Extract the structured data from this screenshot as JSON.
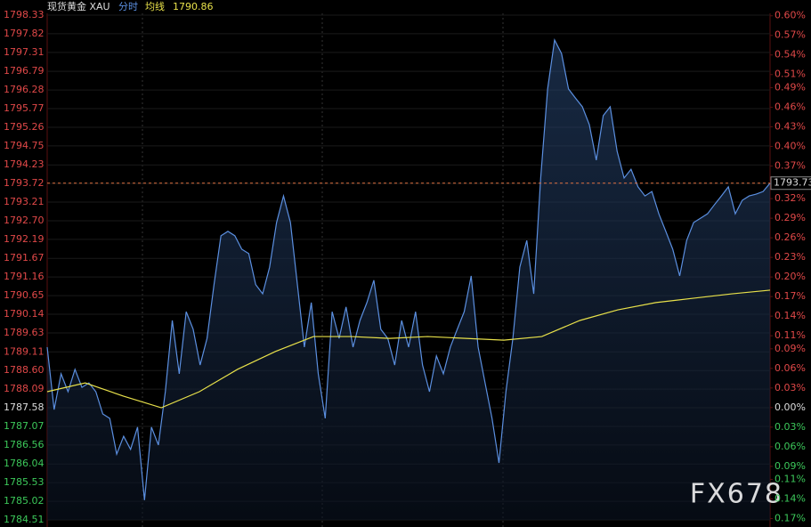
{
  "chart_data": {
    "type": "line",
    "title": "现货黄金 XAU",
    "mode_label": "分时",
    "avg_label": "均线",
    "avg_value": "1790.86",
    "last_price": 1793.73,
    "watermark": "FX678",
    "ylim": [
      1784.51,
      1798.33
    ],
    "yticks": [
      1798.33,
      1797.82,
      1797.31,
      1796.79,
      1796.28,
      1795.77,
      1795.26,
      1794.75,
      1794.23,
      1793.72,
      1793.21,
      {
        "value": 1792.7,
        "label": "1792.70"
      },
      1792.19,
      1791.67,
      1791.16,
      1790.65,
      1790.14,
      1789.63,
      1789.11,
      {
        "value": 1788.6,
        "label": "1788.60"
      },
      1788.09,
      1787.58,
      1787.07,
      1786.56,
      1786.04,
      1785.53,
      1785.02,
      1784.51
    ],
    "y2lim": [
      -0.172,
      0.601
    ],
    "y2ticks": [
      {
        "value": 0.6,
        "label": "0.60%"
      },
      {
        "value": 0.57,
        "label": "0.57%"
      },
      {
        "value": 0.54,
        "label": "0.54%"
      },
      {
        "value": 0.51,
        "label": "0.51%"
      },
      {
        "value": 0.49,
        "label": "0.49%"
      },
      {
        "value": 0.46,
        "label": "0.46%"
      },
      {
        "value": 0.43,
        "label": "0.43%"
      },
      {
        "value": 0.4,
        "label": "0.40%"
      },
      {
        "value": 0.37,
        "label": "0.37%"
      },
      {
        "value": 0.34,
        "label": "0.34%"
      },
      {
        "value": 0.32,
        "label": "0.32%"
      },
      {
        "value": 0.29,
        "label": "0.29%"
      },
      {
        "value": 0.26,
        "label": "0.26%"
      },
      {
        "value": 0.23,
        "label": "0.23%"
      },
      {
        "value": 0.2,
        "label": "0.20%"
      },
      {
        "value": 0.17,
        "label": "0.17%"
      },
      {
        "value": 0.14,
        "label": "0.14%"
      },
      {
        "value": 0.11,
        "label": "0.11%"
      },
      {
        "value": 0.09,
        "label": "0.09%"
      },
      {
        "value": 0.06,
        "label": "0.06%"
      },
      {
        "value": 0.03,
        "label": "0.03%"
      },
      {
        "value": 0,
        "label": "0.00%"
      },
      {
        "value": -0.03,
        "label": "0.03%"
      },
      {
        "value": -0.06,
        "label": "0.06%"
      },
      {
        "value": -0.09,
        "label": "0.09%"
      },
      {
        "value": -0.11,
        "label": "0.11%"
      },
      {
        "value": -0.14,
        "label": "0.14%"
      },
      {
        "value": -0.17,
        "label": "0.17%"
      }
    ],
    "series": [
      {
        "name": "分时",
        "color": "#5b8fe0",
        "values": [
          1789.24,
          1787.53,
          1788.51,
          1788.02,
          1788.63,
          1788.14,
          1788.26,
          1788.02,
          1787.41,
          1787.29,
          1786.31,
          1786.8,
          1786.44,
          1787.05,
          1785.05,
          1787.05,
          1786.56,
          1788.02,
          1789.97,
          1788.51,
          1790.21,
          1789.73,
          1788.75,
          1789.48,
          1790.95,
          1792.29,
          1792.41,
          1792.29,
          1791.92,
          1791.8,
          1790.95,
          1790.7,
          1791.43,
          1792.65,
          1793.38,
          1792.65,
          1790.95,
          1789.24,
          1790.46,
          1788.51,
          1787.29,
          1790.21,
          1789.48,
          1790.34,
          1789.24,
          1789.97,
          1790.46,
          1791.07,
          1789.73,
          1789.48,
          1788.75,
          1789.97,
          1789.24,
          1790.21,
          1788.75,
          1788.02,
          1789.0,
          1788.51,
          1789.24,
          1789.73,
          1790.21,
          1791.19,
          1789.24,
          1788.26,
          1787.29,
          1786.07,
          1788.02,
          1789.48,
          1791.43,
          1792.16,
          1790.7,
          1793.87,
          1796.31,
          1797.65,
          1797.28,
          1796.31,
          1796.06,
          1795.82,
          1795.33,
          1794.36,
          1795.58,
          1795.82,
          1794.6,
          1793.87,
          1794.11,
          1793.63,
          1793.38,
          1793.5,
          1792.89,
          1792.41,
          1791.92,
          1791.19,
          1792.16,
          1792.65,
          1792.77,
          1792.89,
          1793.14,
          1793.38,
          1793.63,
          1792.89,
          1793.26,
          1793.38,
          1793.43,
          1793.5,
          1793.73
        ]
      },
      {
        "name": "均线",
        "color": "#e8e14a",
        "values": [
          1788.02,
          1788.26,
          1787.9,
          1787.58,
          1788.02,
          1788.63,
          1789.12,
          1789.53,
          1789.53,
          1789.48,
          1789.53,
          1789.48,
          1789.43,
          1789.53,
          1789.97,
          1790.26,
          1790.46,
          1790.58,
          1790.7,
          1790.8
        ]
      }
    ]
  }
}
